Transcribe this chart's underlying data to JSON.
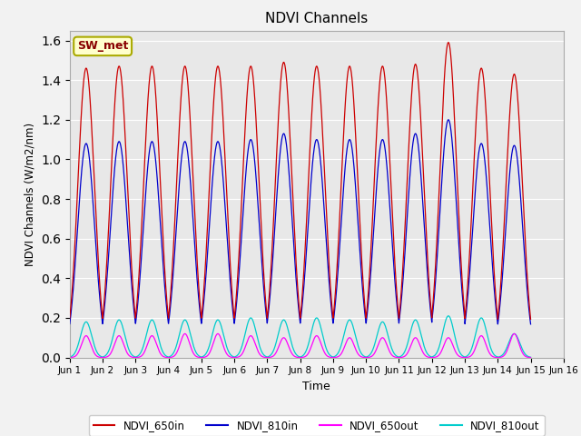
{
  "title": "NDVI Channels",
  "ylabel": "NDVI Channels (W/m2/nm)",
  "xlabel": "Time",
  "legend_label": "SW_met",
  "ylim": [
    0,
    1.65
  ],
  "xlim_days": [
    0,
    15
  ],
  "background_color": "#e8e8e8",
  "day_peaks_650in": [
    1.46,
    1.47,
    1.47,
    1.47,
    1.47,
    1.47,
    1.49,
    1.47,
    1.47,
    1.47,
    1.48,
    1.59,
    1.46,
    1.43
  ],
  "day_peaks_810in": [
    1.08,
    1.09,
    1.09,
    1.09,
    1.09,
    1.1,
    1.13,
    1.1,
    1.1,
    1.1,
    1.13,
    1.2,
    1.08,
    1.07
  ],
  "day_peaks_650out": [
    0.11,
    0.11,
    0.11,
    0.12,
    0.12,
    0.11,
    0.1,
    0.11,
    0.1,
    0.1,
    0.1,
    0.1,
    0.11,
    0.12
  ],
  "day_peaks_810out": [
    0.18,
    0.19,
    0.19,
    0.19,
    0.19,
    0.2,
    0.19,
    0.2,
    0.19,
    0.18,
    0.19,
    0.21,
    0.2,
    0.12
  ],
  "num_days": 14,
  "points_per_day": 300,
  "legend_entries": [
    "NDVI_650in",
    "NDVI_810in",
    "NDVI_650out",
    "NDVI_810out"
  ],
  "legend_colors": [
    "#cc0000",
    "#0000cc",
    "#ff00ff",
    "#00cccc"
  ],
  "xtick_labels": [
    "Jun 1",
    "Jun 2",
    "Jun 3",
    "Jun 4",
    "Jun 5",
    "Jun 6",
    "Jun 7",
    "Jun 8",
    "Jun 9",
    "Jun 10",
    "Jun 11",
    "Jun 12",
    "Jun 13",
    "Jun 14",
    "Jun 15",
    "Jun 16"
  ],
  "yticks": [
    0.0,
    0.2,
    0.4,
    0.6,
    0.8,
    1.0,
    1.2,
    1.4,
    1.6
  ]
}
